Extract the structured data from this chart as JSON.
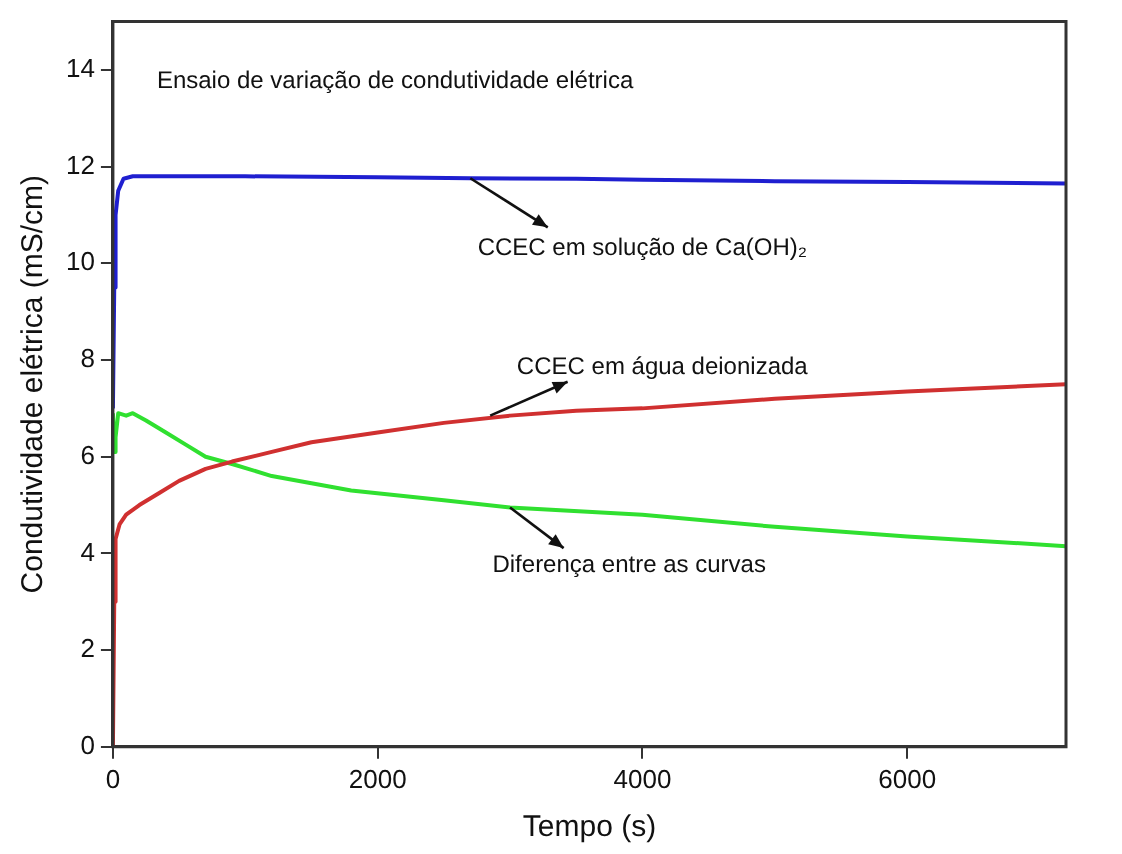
{
  "chart_data": {
    "type": "line",
    "xlabel": "Tempo (s)",
    "ylabel": "Condutividade elétrica (mS/cm)",
    "xlim": [
      0,
      7200
    ],
    "xticks": [
      0,
      2000,
      4000,
      6000
    ],
    "ylim": [
      0,
      15
    ],
    "yticks": [
      0,
      2,
      4,
      6,
      8,
      10,
      12,
      14
    ],
    "grid": false,
    "legend": false,
    "marker": "none",
    "line_style": "solid",
    "series": [
      {
        "color": "#1f1fd0",
        "x": [
          0,
          10,
          20,
          40,
          80,
          150,
          300,
          1000,
          2000,
          2700,
          3500,
          4000,
          5000,
          6000,
          7200
        ],
        "values": [
          7.0,
          9.5,
          11.0,
          11.5,
          11.75,
          11.8,
          11.8,
          11.8,
          11.78,
          11.76,
          11.75,
          11.73,
          11.7,
          11.68,
          11.65
        ]
      },
      {
        "color": "#d03030",
        "x": [
          0,
          10,
          20,
          50,
          100,
          200,
          350,
          500,
          700,
          900,
          1200,
          1500,
          2000,
          2500,
          3000,
          3500,
          4000,
          5000,
          6000,
          7200
        ],
        "values": [
          0,
          3.0,
          4.3,
          4.6,
          4.8,
          5.0,
          5.25,
          5.5,
          5.75,
          5.9,
          6.1,
          6.3,
          6.5,
          6.7,
          6.85,
          6.95,
          7.0,
          7.2,
          7.35,
          7.5
        ]
      },
      {
        "color": "#30e030",
        "x": [
          0,
          10,
          20,
          40,
          100,
          150,
          250,
          400,
          550,
          700,
          900,
          1200,
          1500,
          1800,
          2500,
          3000,
          4000,
          5000,
          6000,
          7200
        ],
        "values": [
          6.9,
          6.1,
          6.4,
          6.9,
          6.85,
          6.9,
          6.75,
          6.5,
          6.25,
          6.0,
          5.85,
          5.6,
          5.45,
          5.3,
          5.1,
          4.95,
          4.8,
          4.55,
          4.35,
          4.15
        ]
      }
    ],
    "annotations": [
      "Ensaio de variação de condutividade elétrica",
      {
        "text": "CCEC em solução de Ca(OH)₂",
        "x": 2700,
        "y": 11.76
      },
      {
        "text": "CCEC em água deionizada",
        "x": 2850,
        "y": 6.85
      },
      {
        "text": "Diferença entre as curvas",
        "x": 3000,
        "y": 4.95
      }
    ]
  }
}
